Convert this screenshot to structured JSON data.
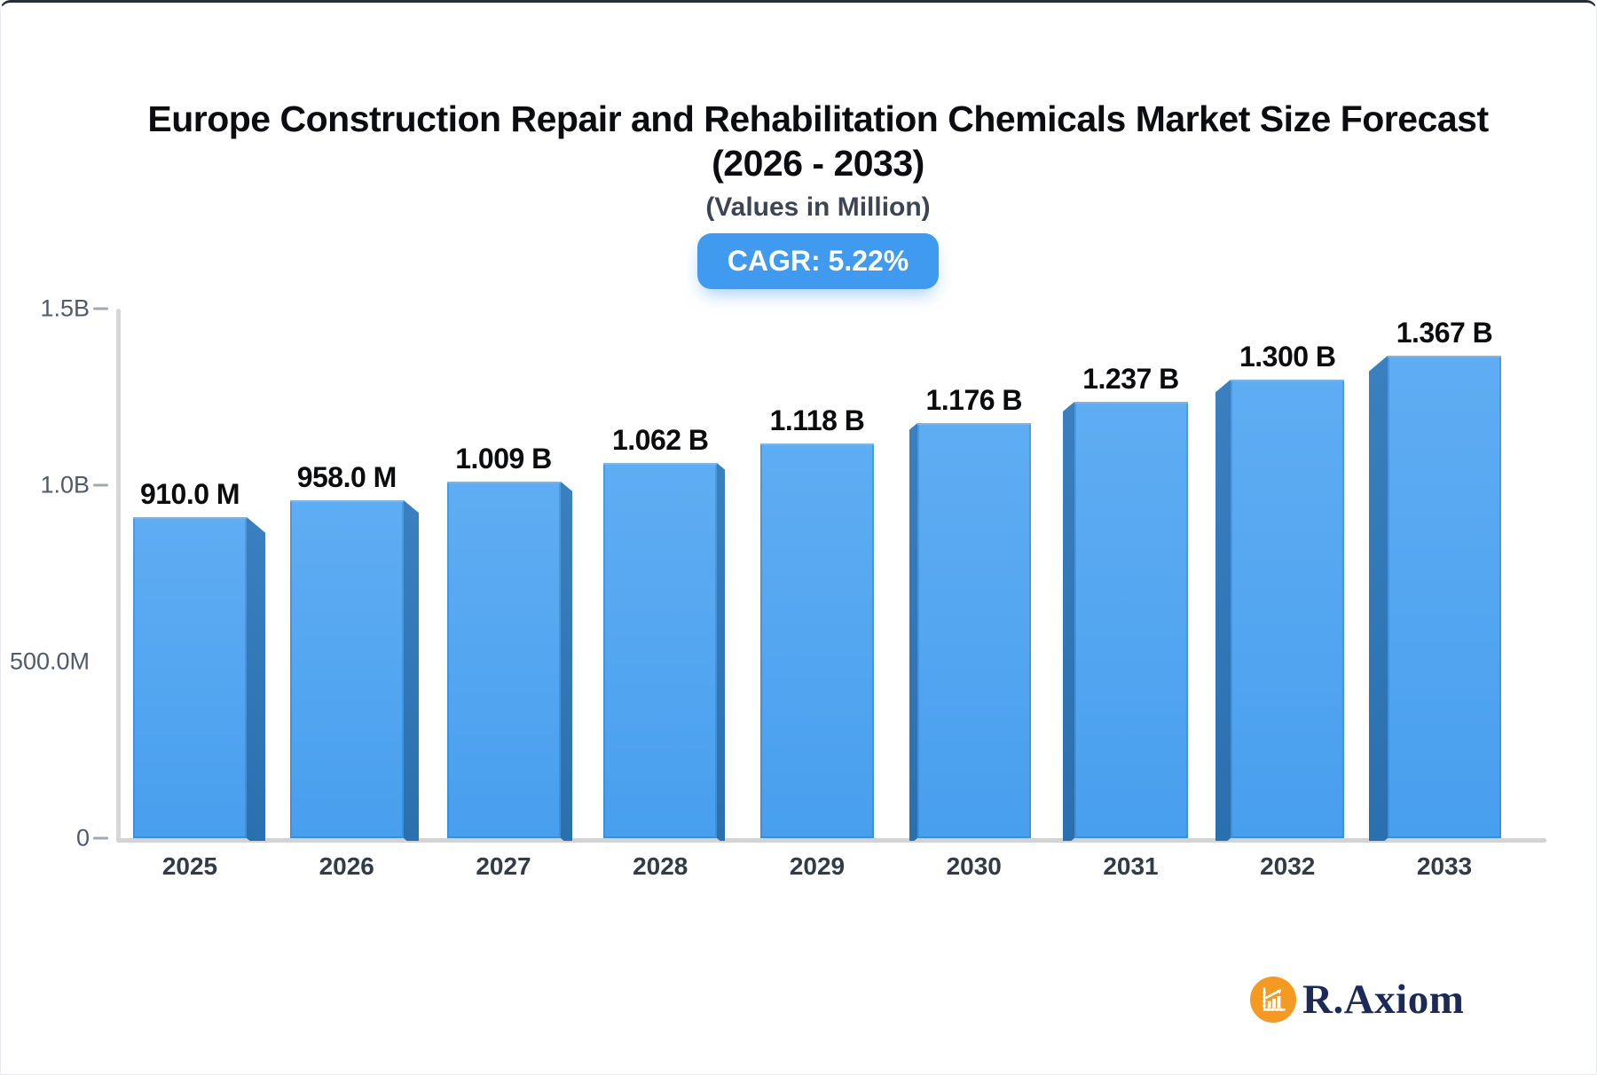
{
  "header": {
    "title_line1": "Europe Construction Repair and Rehabilitation Chemicals Market Size Forecast",
    "title_line2": "(2026 - 2033)",
    "subtitle": "(Values in Million)",
    "cagr_badge": "CAGR: 5.22%"
  },
  "logo": {
    "brand": "R.Axiom",
    "icon": "growth-chart-icon"
  },
  "colors": {
    "bar_face_top": "#5fadf3",
    "bar_face_bottom": "#489fee",
    "bar_side_top": "#3a80c0",
    "bar_side_bottom": "#2a6fae",
    "badge_bg": "#3f9af0",
    "badge_text": "#ffffff",
    "axis_line": "#d6d6d9",
    "tick_dash": "#a2a8b2",
    "ytick_text": "#505a68",
    "xtick_text": "#333b49",
    "value_text": "#0b0c0e",
    "logo_circle": "#f49a22",
    "logo_text": "#1c2a56"
  },
  "chart_data": {
    "type": "bar",
    "style": "3d-perspective-bars",
    "title": "Europe Construction Repair and Rehabilitation Chemicals Market Size Forecast (2026 - 2033)",
    "subtitle": "(Values in Million)",
    "cagr": "5.22%",
    "value_unit": "Million",
    "categories": [
      "2025",
      "2026",
      "2027",
      "2028",
      "2029",
      "2030",
      "2031",
      "2032",
      "2033"
    ],
    "values_million": [
      910,
      958,
      1009,
      1062,
      1118,
      1176,
      1237,
      1300,
      1367
    ],
    "value_labels": [
      "910.0 M",
      "958.0 M",
      "1.009 B",
      "1.062 B",
      "1.118 B",
      "1.176 B",
      "1.237 B",
      "1.300 B",
      "1.367 B"
    ],
    "ylim_million": [
      0,
      1500
    ],
    "yticks": [
      {
        "label": "1.5B",
        "value": 1500,
        "dash": true
      },
      {
        "label": "1.0B",
        "value": 1000,
        "dash": true
      },
      {
        "label": "500.0M",
        "value": 500,
        "dash": false
      },
      {
        "label": "0",
        "value": 0,
        "dash": true
      }
    ],
    "grid": false,
    "legend": false,
    "xlabel": "",
    "ylabel": ""
  }
}
